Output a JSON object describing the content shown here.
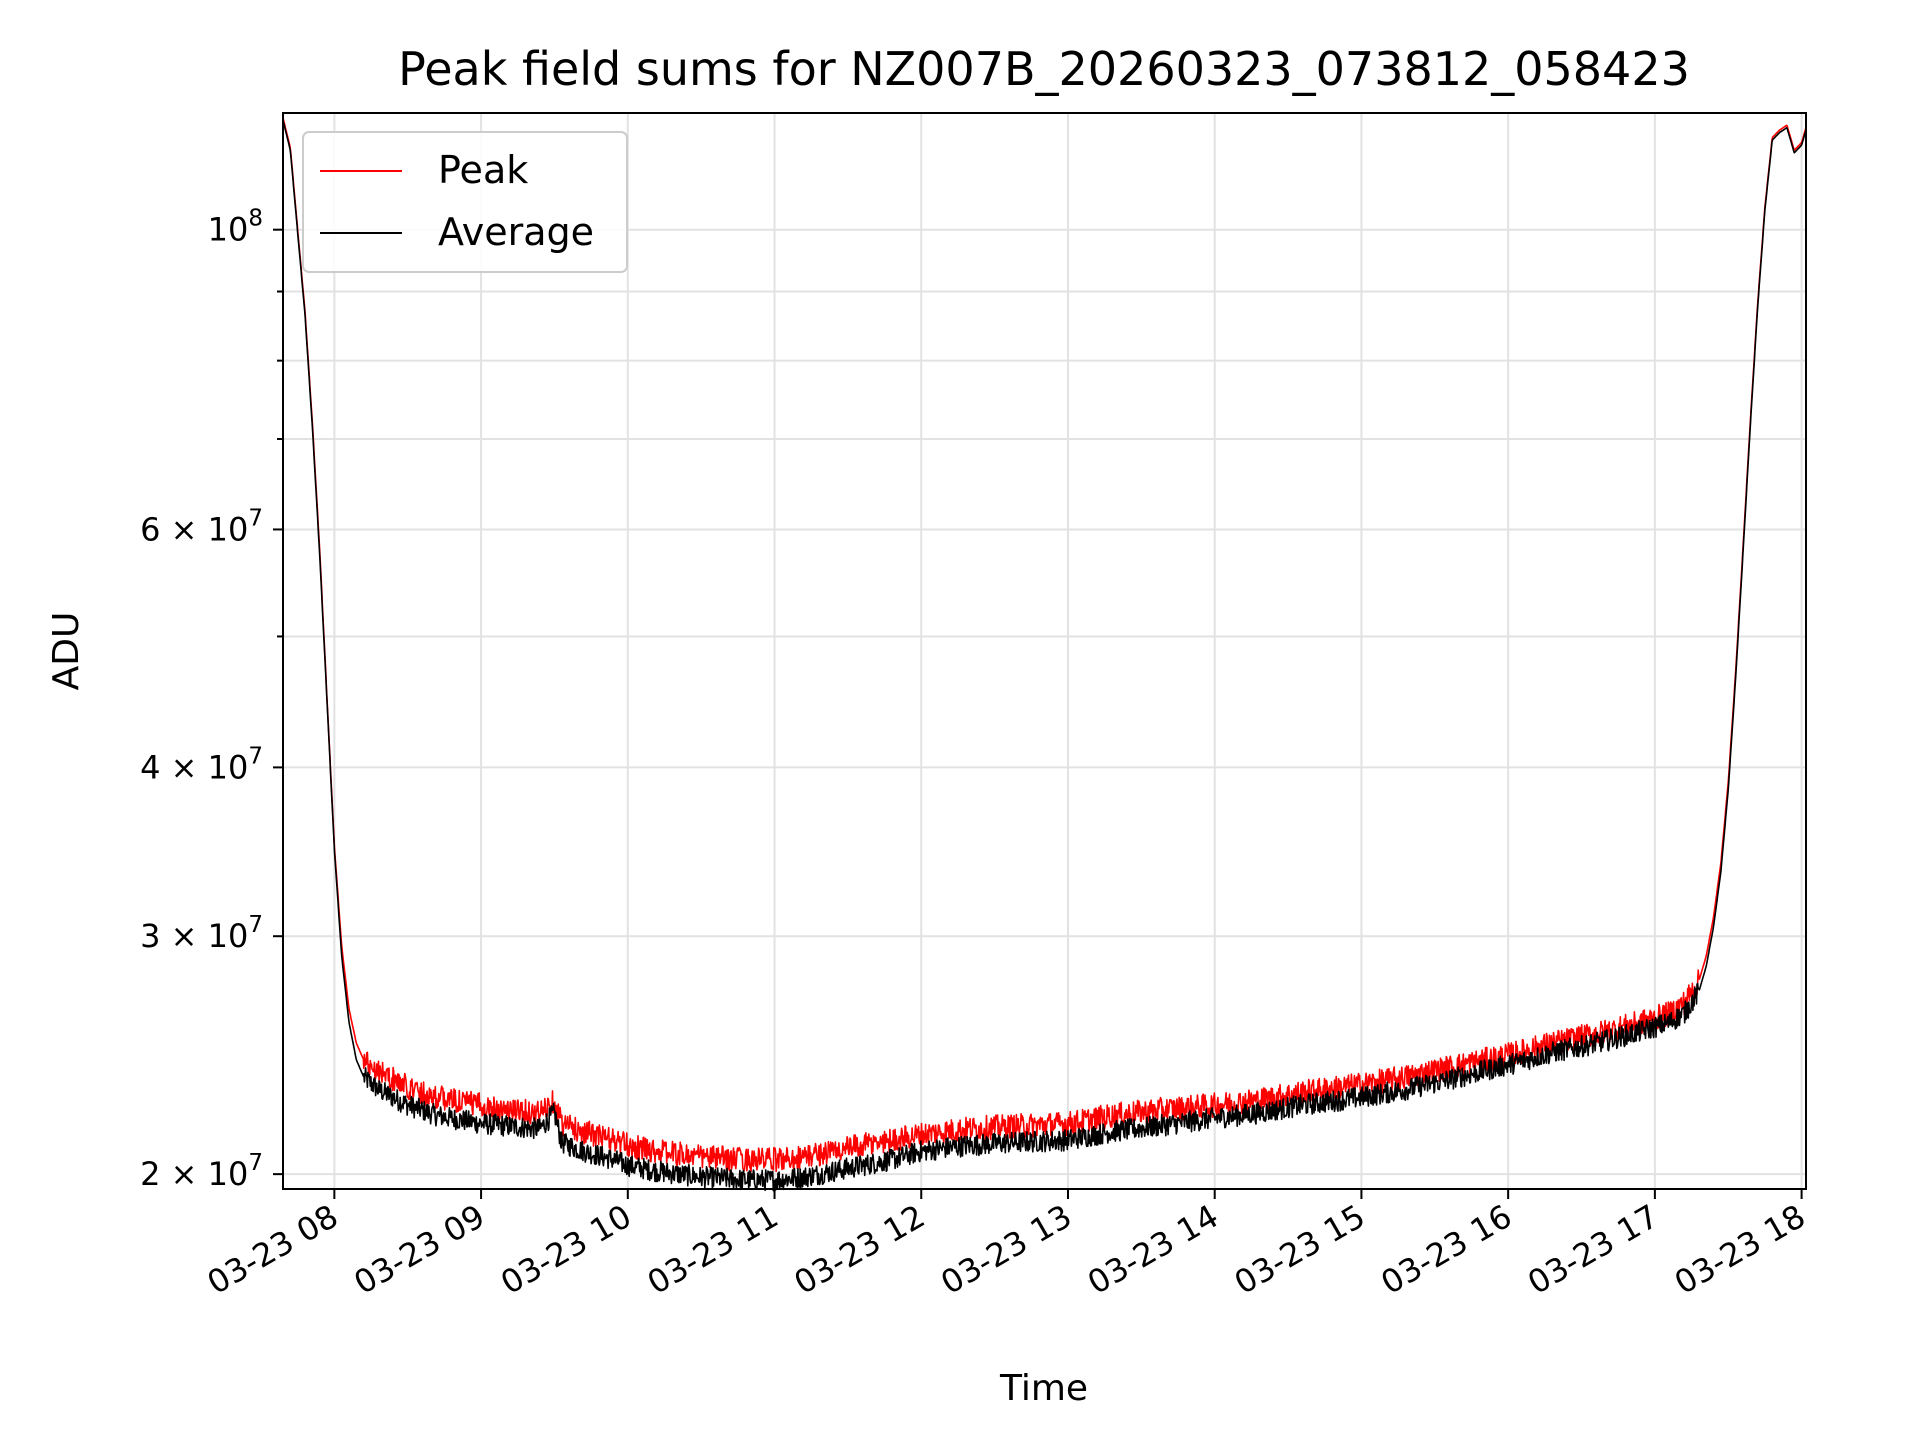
{
  "chart_data": {
    "type": "line",
    "title": "Peak field sums for NZ007B_20260323_073812_058423",
    "xlabel": "Time",
    "ylabel": "ADU",
    "yscale": "log",
    "grid": true,
    "legend_position": "upper-left",
    "xlim_hours": [
      7.65,
      18.03
    ],
    "ylim": [
      19500000,
      122000000
    ],
    "x_ticks": [
      {
        "hour": 8,
        "label": "03-23 08"
      },
      {
        "hour": 9,
        "label": "03-23 09"
      },
      {
        "hour": 10,
        "label": "03-23 10"
      },
      {
        "hour": 11,
        "label": "03-23 11"
      },
      {
        "hour": 12,
        "label": "03-23 12"
      },
      {
        "hour": 13,
        "label": "03-23 13"
      },
      {
        "hour": 14,
        "label": "03-23 14"
      },
      {
        "hour": 15,
        "label": "03-23 15"
      },
      {
        "hour": 16,
        "label": "03-23 16"
      },
      {
        "hour": 17,
        "label": "03-23 17"
      },
      {
        "hour": 18,
        "label": "03-23 18"
      }
    ],
    "y_major_ticks": [
      {
        "value": 100000000,
        "mant": "10",
        "exp": "8"
      },
      {
        "value": 60000000,
        "mant": "6 × 10",
        "exp": "7"
      },
      {
        "value": 40000000,
        "mant": "4 × 10",
        "exp": "7"
      },
      {
        "value": 30000000,
        "mant": "3 × 10",
        "exp": "7"
      },
      {
        "value": 20000000,
        "mant": "2 × 10",
        "exp": "7"
      }
    ],
    "y_minor_ticks": [
      90000000,
      80000000,
      70000000,
      50000000
    ],
    "series": [
      {
        "name": "Peak",
        "color": "#ff0000",
        "hours": [
          7.65,
          7.7,
          7.75,
          7.8,
          7.85,
          7.9,
          7.95,
          8.0,
          8.05,
          8.1,
          8.15,
          8.2,
          8.3,
          8.4,
          8.5,
          8.6,
          8.7,
          8.8,
          8.9,
          9.0,
          9.2,
          9.4,
          9.5,
          9.55,
          9.7,
          9.9,
          10.0,
          10.2,
          10.5,
          10.8,
          11.0,
          11.2,
          11.4,
          11.6,
          11.8,
          12.0,
          12.3,
          12.6,
          13.0,
          13.3,
          13.6,
          14.0,
          14.3,
          14.6,
          15.0,
          15.3,
          15.6,
          16.0,
          16.3,
          16.6,
          16.9,
          17.1,
          17.2,
          17.3,
          17.35,
          17.4,
          17.45,
          17.5,
          17.55,
          17.6,
          17.65,
          17.7,
          17.75,
          17.8,
          17.85,
          17.9,
          17.95,
          18.0,
          18.03
        ],
        "values": [
          121000000,
          115000000,
          100000000,
          87000000,
          72000000,
          58000000,
          45000000,
          35000000,
          29500000,
          26500000,
          25000000,
          24300000,
          23900000,
          23500000,
          23200000,
          23000000,
          22800000,
          22700000,
          22600000,
          22500000,
          22300000,
          22200000,
          22700000,
          21800000,
          21500000,
          21200000,
          21000000,
          20800000,
          20600000,
          20500000,
          20500000,
          20600000,
          20800000,
          21000000,
          21200000,
          21400000,
          21600000,
          21700000,
          21800000,
          22100000,
          22300000,
          22500000,
          22700000,
          23000000,
          23300000,
          23600000,
          24000000,
          24500000,
          25000000,
          25400000,
          25900000,
          26300000,
          26800000,
          27800000,
          29000000,
          31000000,
          34000000,
          39000000,
          47000000,
          58000000,
          72000000,
          88000000,
          104000000,
          117000000,
          118500000,
          119500000,
          114500000,
          116000000,
          119000000
        ]
      },
      {
        "name": "Average",
        "color": "#000000",
        "hours": [
          7.65,
          7.7,
          7.75,
          7.8,
          7.85,
          7.9,
          7.95,
          8.0,
          8.05,
          8.1,
          8.15,
          8.2,
          8.3,
          8.4,
          8.5,
          8.6,
          8.7,
          8.8,
          8.9,
          9.0,
          9.2,
          9.4,
          9.5,
          9.55,
          9.7,
          9.9,
          10.0,
          10.2,
          10.5,
          10.8,
          11.0,
          11.2,
          11.4,
          11.6,
          11.8,
          12.0,
          12.3,
          12.6,
          13.0,
          13.3,
          13.6,
          14.0,
          14.3,
          14.6,
          15.0,
          15.3,
          15.6,
          16.0,
          16.3,
          16.6,
          16.9,
          17.1,
          17.2,
          17.3,
          17.35,
          17.4,
          17.45,
          17.5,
          17.55,
          17.6,
          17.65,
          17.7,
          17.75,
          17.8,
          17.85,
          17.9,
          17.95,
          18.0,
          18.03
        ],
        "values": [
          120500000,
          114500000,
          99500000,
          86500000,
          71500000,
          57500000,
          44800000,
          34800000,
          29000000,
          25900000,
          24300000,
          23600000,
          23100000,
          22800000,
          22500000,
          22300000,
          22100000,
          22000000,
          21900000,
          21800000,
          21700000,
          21600000,
          22200000,
          21100000,
          20800000,
          20500000,
          20300000,
          20100000,
          19900000,
          19800000,
          19800000,
          19900000,
          20100000,
          20300000,
          20500000,
          20800000,
          21000000,
          21100000,
          21200000,
          21500000,
          21700000,
          22000000,
          22200000,
          22500000,
          22800000,
          23100000,
          23500000,
          24100000,
          24600000,
          25000000,
          25500000,
          25900000,
          26300000,
          27300000,
          28500000,
          30500000,
          33500000,
          38500000,
          46500000,
          57500000,
          71500000,
          87500000,
          103500000,
          116500000,
          118000000,
          119000000,
          114000000,
          115500000,
          118500000
        ]
      }
    ]
  }
}
